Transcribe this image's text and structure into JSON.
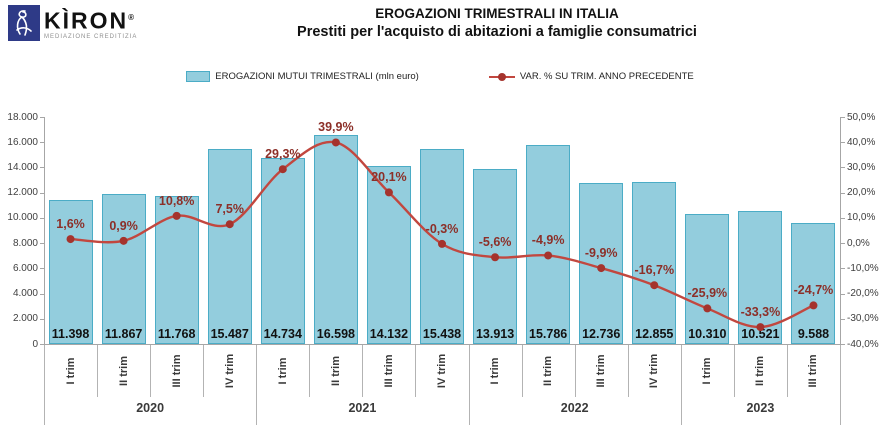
{
  "logo": {
    "brand": "KÌRON",
    "registered": "®",
    "tagline": "MEDIAZIONE CREDITIZIA"
  },
  "header": {
    "title": "EROGAZIONI TRIMESTRALI IN ITALIA",
    "subtitle": "Prestiti per l'acquisto di abitazioni a famiglie consumatrici"
  },
  "legend": [
    {
      "label": "EROGAZIONI MUTUI TRIMESTRALI (mln euro)",
      "type": "bar"
    },
    {
      "label": "VAR. % SU TRIM. ANNO PRECEDENTE",
      "type": "line"
    }
  ],
  "colors": {
    "bar_fill": "#93cddd",
    "bar_border": "#4bacc6",
    "line": "#c2473f",
    "marker": "#a5332d",
    "line_label": "#8c2f28",
    "bar_label": "#111111",
    "axis": "#a6a6a6",
    "axis_text": "#404040",
    "separator": "#b3b3b3",
    "logo_blue": "#2e3a87"
  },
  "chart_data": {
    "type": "combo bar+line",
    "categories": [
      "I trim",
      "II trim",
      "III trim",
      "IV trim",
      "I trim",
      "II trim",
      "III trim",
      "IV trim",
      "I trim",
      "II trim",
      "III trim",
      "IV trim",
      "I trim",
      "II trim",
      "III trim"
    ],
    "year_groups": [
      {
        "label": "2020",
        "count": 4
      },
      {
        "label": "2021",
        "count": 4
      },
      {
        "label": "2022",
        "count": 4
      },
      {
        "label": "2023",
        "count": 3
      }
    ],
    "series": [
      {
        "name": "EROGAZIONI MUTUI TRIMESTRALI (mln euro)",
        "type": "bar",
        "axis": "left",
        "values": [
          11398,
          11867,
          11768,
          15487,
          14734,
          16598,
          14132,
          15438,
          13913,
          15786,
          12736,
          12855,
          10310,
          10521,
          9588
        ],
        "labels": [
          "11.398",
          "11.867",
          "11.768",
          "15.487",
          "14.734",
          "16.598",
          "14.132",
          "15.438",
          "13.913",
          "15.786",
          "12.736",
          "12.855",
          "10.310",
          "10.521",
          "9.588"
        ]
      },
      {
        "name": "VAR. % SU TRIM. ANNO PRECEDENTE",
        "type": "line",
        "axis": "right",
        "values": [
          1.6,
          0.9,
          10.8,
          7.5,
          29.3,
          39.9,
          20.1,
          -0.3,
          -5.6,
          -4.9,
          -9.9,
          -16.7,
          -25.9,
          -33.3,
          -24.7
        ],
        "labels": [
          "1,6%",
          "0,9%",
          "10,8%",
          "7,5%",
          "29,3%",
          "39,9%",
          "20,1%",
          "-0,3%",
          "-5,6%",
          "-4,9%",
          "-9,9%",
          "-16,7%",
          "-25,9%",
          "-33,3%",
          "-24,7%"
        ]
      }
    ],
    "left_axis": {
      "min": 0,
      "max": 18000,
      "step": 2000,
      "tick_labels": [
        "18.000",
        "16.000",
        "14.000",
        "12.000",
        "10.000",
        "8.000",
        "6.000",
        "4.000",
        "2.000",
        "0"
      ]
    },
    "right_axis": {
      "min": -40,
      "max": 50,
      "step": 10,
      "tick_labels": [
        "50,0%",
        "40,0%",
        "30,0%",
        "20,0%",
        "10,0%",
        "0,0%",
        "-10,0%",
        "-20,0%",
        "-30,0%",
        "-40,0%"
      ]
    },
    "grid": false,
    "legend_position": "top"
  }
}
